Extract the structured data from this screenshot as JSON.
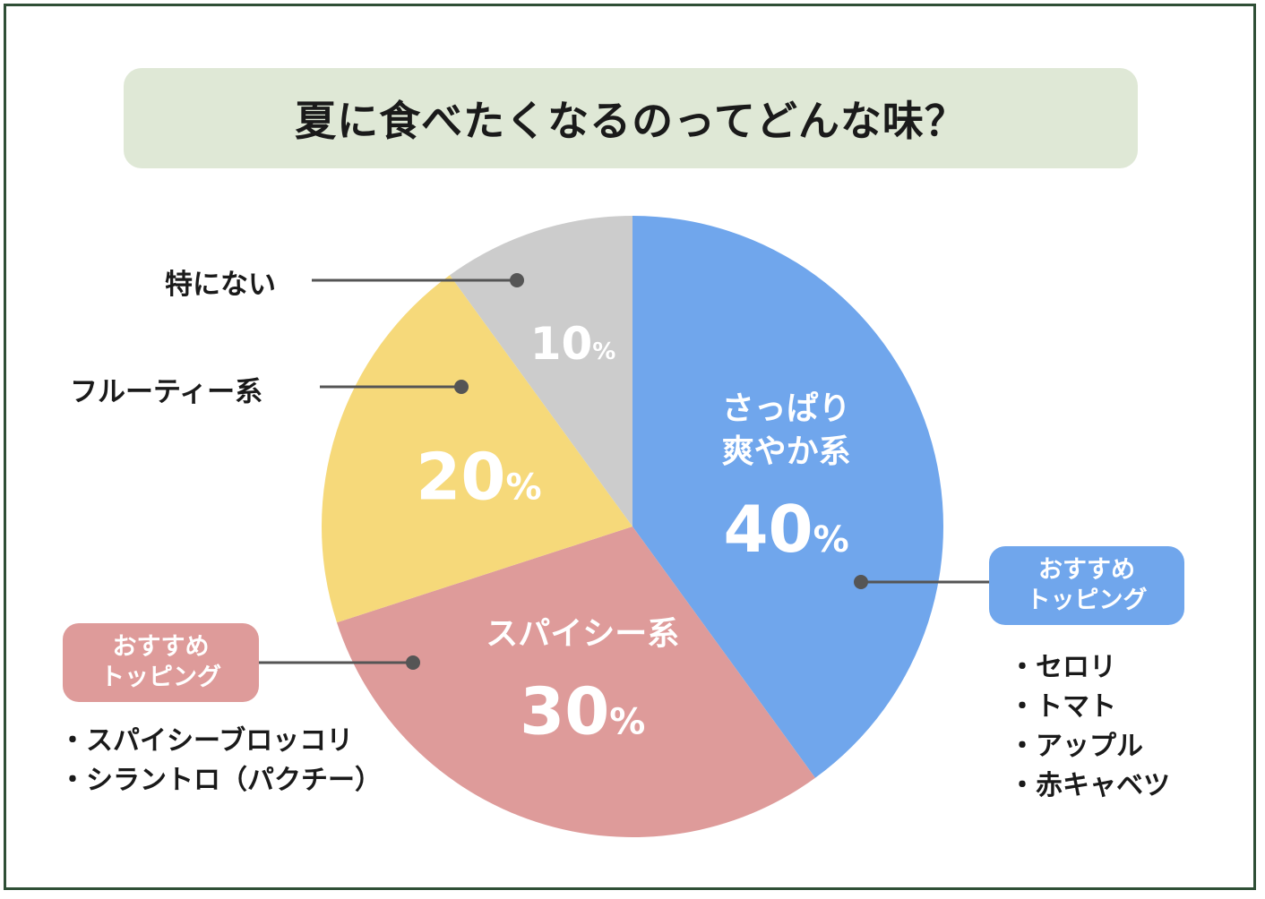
{
  "title": "夏に食べたくなるのってどんな味？",
  "chart_data": {
    "type": "pie",
    "title": "夏に食べたくなるのってどんな味？",
    "slices": [
      {
        "label": "さっぱり爽やか系",
        "label_lines": [
          "さっぱり",
          "爽やか系"
        ],
        "value": 40,
        "display": "40",
        "color": "#70a6ec"
      },
      {
        "label": "スパイシー系",
        "label_lines": [
          "スパイシー系"
        ],
        "value": 30,
        "display": "30",
        "color": "#de9b9a"
      },
      {
        "label": "フルーティー系",
        "label_lines": [],
        "value": 20,
        "display": "20",
        "color": "#f6d97a"
      },
      {
        "label": "特にない",
        "label_lines": [],
        "value": 10,
        "display": "10",
        "color": "#cccccc"
      }
    ],
    "unit": "%"
  },
  "callouts": {
    "none": "特にない",
    "fruity": "フルーティー系"
  },
  "toppings": {
    "refreshing": {
      "badge_line1": "おすすめ",
      "badge_line2": "トッピング",
      "badge_color": "#70a6ec",
      "items": [
        "セロリ",
        "トマト",
        "アップル",
        "赤キャベツ"
      ]
    },
    "spicy": {
      "badge_line1": "おすすめ",
      "badge_line2": "トッピング",
      "badge_color": "#de9b9a",
      "items": [
        "スパイシーブロッコリ",
        "シラントロ（パクチー）"
      ]
    }
  }
}
